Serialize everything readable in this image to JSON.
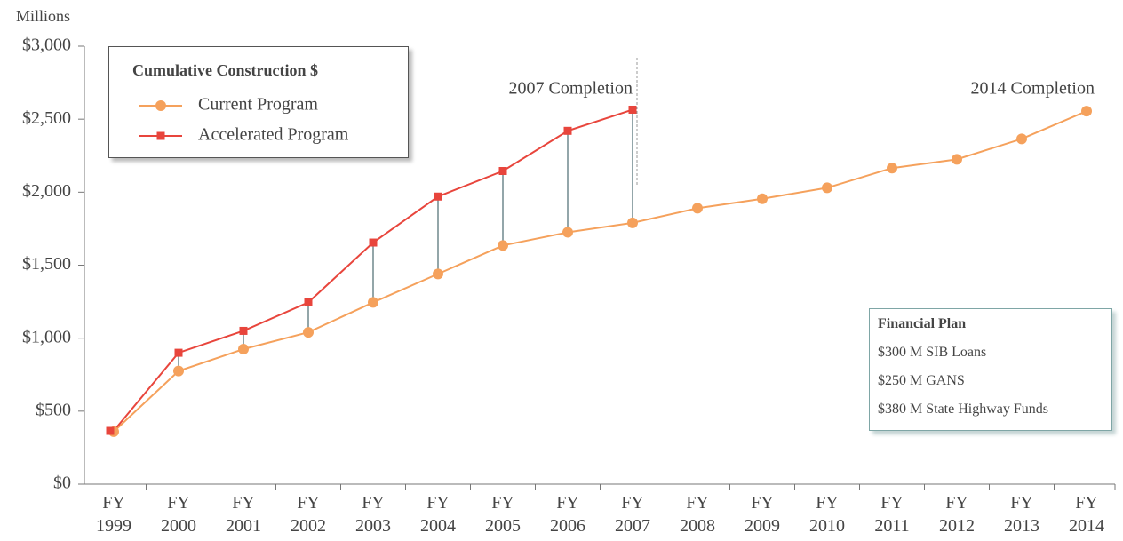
{
  "chart_data": {
    "type": "line",
    "y_axis_label": "Millions",
    "categories": [
      "FY 1999",
      "FY 2000",
      "FY 2001",
      "FY 2002",
      "FY 2003",
      "FY 2004",
      "FY 2005",
      "FY 2006",
      "FY 2007",
      "FY 2008",
      "FY 2009",
      "FY 2010",
      "FY 2011",
      "FY 2012",
      "FY 2013",
      "FY 2014"
    ],
    "series": [
      {
        "name": "Current Program",
        "color": "#f5a15c",
        "marker": "circle",
        "values": [
          360,
          775,
          925,
          1040,
          1245,
          1440,
          1635,
          1725,
          1790,
          1890,
          1955,
          2030,
          2165,
          2225,
          2365,
          2555
        ]
      },
      {
        "name": "Accelerated Program",
        "color": "#e8453c",
        "marker": "square",
        "values": [
          365,
          900,
          1050,
          1245,
          1655,
          1970,
          2145,
          2420,
          2565,
          null,
          null,
          null,
          null,
          null,
          null,
          null
        ]
      }
    ],
    "legend_title": "Cumulative Construction $",
    "ylim": [
      0,
      3000
    ],
    "yticks": [
      {
        "value": 0,
        "label": "$0"
      },
      {
        "value": 500,
        "label": "$500"
      },
      {
        "value": 1000,
        "label": "$1,000"
      },
      {
        "value": 1500,
        "label": "$1,500"
      },
      {
        "value": 2000,
        "label": "$2,000"
      },
      {
        "value": 2500,
        "label": "$2,500"
      },
      {
        "value": 3000,
        "label": "$3,000"
      }
    ],
    "annotations": [
      "2007 Completion",
      "2014 Completion"
    ],
    "financial_plan": {
      "title": "Financial Plan",
      "items": [
        "$300 M SIB Loans",
        "$250 M GANS",
        "$380 M State Highway Funds"
      ]
    }
  }
}
